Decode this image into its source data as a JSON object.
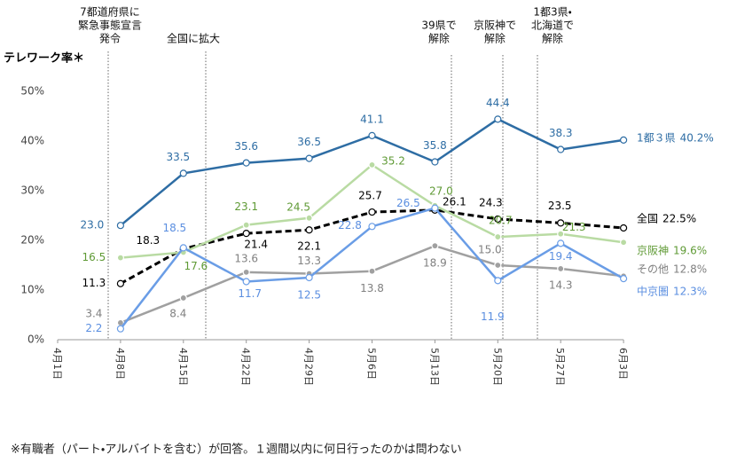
{
  "chart_data": {
    "type": "line",
    "y_label": "テレワーク率＊",
    "footnote": "※有職者（パート・アルバイトを含む）が回答。１週間以内に何日行ったのかは問わない",
    "categories": [
      "4月1日",
      "4月8日",
      "4月15日",
      "4月22日",
      "4月29日",
      "5月6日",
      "5月13日",
      "5月20日",
      "5月27日",
      "6月3日"
    ],
    "ylim": [
      0,
      50
    ],
    "yticks": [
      {
        "value": 0,
        "label": "0%"
      },
      {
        "value": 10,
        "label": "10%"
      },
      {
        "value": 20,
        "label": "20%"
      },
      {
        "value": 30,
        "label": "30%"
      },
      {
        "value": 40,
        "label": "40%"
      },
      {
        "value": 50,
        "label": "50%"
      }
    ],
    "grid": false,
    "annotations": [
      {
        "lines": [
          "7都道府県に",
          "緊急事態宣言",
          "発令"
        ]
      },
      {
        "lines": [
          "全国に拡大"
        ]
      },
      {
        "lines": [
          "39県で",
          "解除"
        ]
      },
      {
        "lines": [
          "京阪神で",
          "解除"
        ]
      },
      {
        "lines": [
          "1都3県・",
          "北海道で",
          "解除"
        ]
      }
    ],
    "series": [
      {
        "name": "1都３県",
        "color": "#2e6da4",
        "label_color": "#2e6da4",
        "marker": "open",
        "dashed": false,
        "values": [
          null,
          23.0,
          33.5,
          35.6,
          36.5,
          41.1,
          35.8,
          44.4,
          38.3,
          40.2
        ],
        "value_labels": [
          null,
          "23.0",
          "33.5",
          "35.6",
          "36.5",
          "41.1",
          "35.8",
          "44.4",
          "38.3",
          "40.2%"
        ]
      },
      {
        "name": "全国",
        "color": "#000000",
        "label_color": "#000000",
        "marker": "open",
        "dashed": true,
        "values": [
          null,
          11.3,
          18.3,
          21.4,
          22.1,
          25.7,
          26.1,
          24.3,
          23.5,
          22.5
        ],
        "value_labels": [
          null,
          "11.3",
          "18.3",
          "21.4",
          "22.1",
          "25.7",
          "26.1",
          "24.3",
          "23.5",
          "22.5%"
        ]
      },
      {
        "name": "京阪神",
        "color": "#b9dba3",
        "label_color": "#5f9a35",
        "marker": "filled",
        "dashed": false,
        "values": [
          null,
          16.5,
          17.6,
          23.1,
          24.5,
          35.2,
          27.0,
          20.7,
          21.3,
          19.6
        ],
        "value_labels": [
          null,
          "16.5",
          "17.6",
          "23.1",
          "24.5",
          "35.2",
          "27.0",
          "20.7",
          "21.3",
          "19.6%"
        ]
      },
      {
        "name": "その他",
        "color": "#a0a0a0",
        "label_color": "#808080",
        "marker": "filled",
        "dashed": false,
        "values": [
          null,
          3.4,
          8.4,
          13.6,
          13.3,
          13.8,
          18.9,
          15.0,
          14.3,
          12.8
        ],
        "value_labels": [
          null,
          "3.4",
          "8.4",
          "13.6",
          "13.3",
          "13.8",
          "18.9",
          "15.0",
          "14.3",
          "12.8%"
        ]
      },
      {
        "name": "中京圏",
        "color": "#6a9de6",
        "label_color": "#5a8ee0",
        "marker": "open",
        "dashed": false,
        "values": [
          null,
          2.2,
          18.5,
          11.7,
          12.5,
          22.8,
          26.5,
          11.9,
          19.4,
          12.3
        ],
        "value_labels": [
          null,
          "2.2",
          "18.5",
          "11.7",
          "12.5",
          "22.8",
          "26.5",
          "11.9",
          "19.4",
          "12.3%"
        ]
      }
    ]
  }
}
